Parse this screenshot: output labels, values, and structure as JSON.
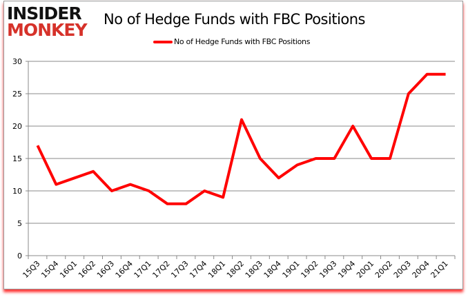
{
  "logo": {
    "line1": "INSIDER",
    "line2": "MONKEY"
  },
  "chart_data": {
    "type": "line",
    "title": "No of Hedge Funds with FBC Positions",
    "xlabel": "",
    "ylabel": "",
    "categories": [
      "15Q3",
      "15Q4",
      "16Q1",
      "16Q2",
      "16Q3",
      "16Q4",
      "17Q1",
      "17Q2",
      "17Q3",
      "17Q4",
      "18Q1",
      "18Q2",
      "18Q3",
      "18Q4",
      "19Q1",
      "19Q2",
      "19Q3",
      "19Q4",
      "20Q1",
      "20Q2",
      "20Q3",
      "20Q4",
      "21Q1"
    ],
    "series": [
      {
        "name": "No of Hedge Funds with FBC Positions",
        "color": "#ff0000",
        "values": [
          17,
          11,
          12,
          13,
          10,
          11,
          10,
          8,
          8,
          10,
          9,
          21,
          15,
          12,
          14,
          15,
          15,
          20,
          15,
          15,
          25,
          28,
          28
        ]
      }
    ],
    "ylim": [
      0,
      30
    ],
    "yticks": [
      0,
      5,
      10,
      15,
      20,
      25,
      30
    ],
    "grid": true,
    "legend": "top-center"
  }
}
